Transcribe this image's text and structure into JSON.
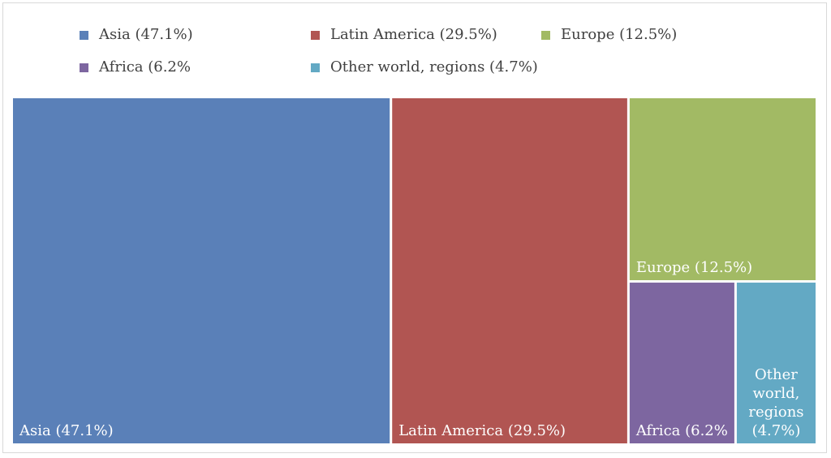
{
  "chart_data": {
    "type": "treemap",
    "title": "",
    "legend_position": "top",
    "categories": [
      "Asia (47.1%)",
      "Latin America (29.5%)",
      "Europe (12.5%)",
      "Africa (6.2%",
      "Other world, regions (4.7%)"
    ],
    "values": [
      47.1,
      29.5,
      12.5,
      6.2,
      4.7
    ],
    "colors": [
      "#5a80b8",
      "#b15552",
      "#a2ba64",
      "#7d66a0",
      "#63a9c4"
    ],
    "legend": [
      {
        "label": "Asia (47.1%)",
        "color": "#5a80b8"
      },
      {
        "label": "Latin America (29.5%)",
        "color": "#b15552"
      },
      {
        "label": "Europe (12.5%)",
        "color": "#a2ba64"
      },
      {
        "label": "Africa (6.2%",
        "color": "#7d66a0"
      },
      {
        "label": "Other world, regions (4.7%)",
        "color": "#63a9c4"
      }
    ],
    "tile_labels": [
      [
        "Asia (47.1%)"
      ],
      [
        "Latin America (29.5%)"
      ],
      [
        "Europe (12.5%)"
      ],
      [
        "Africa (6.2%"
      ],
      [
        "Other",
        "world,",
        "regions",
        "(4.7%)"
      ]
    ]
  }
}
